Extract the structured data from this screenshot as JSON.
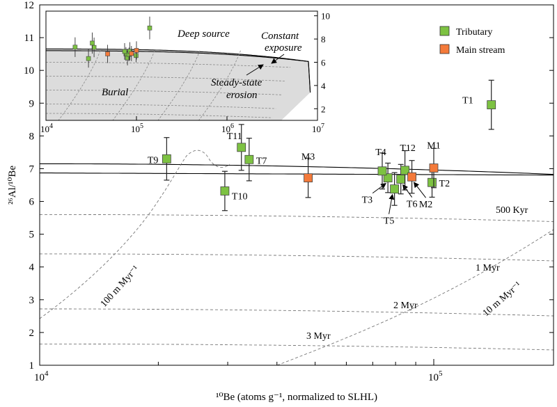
{
  "chart_data": {
    "type": "scatter",
    "xlabel": "¹⁰Be (atoms g⁻¹, normalized to SLHL)",
    "ylabel": "²⁶Al/¹⁰Be",
    "xscale": "log",
    "xlim": [
      10000,
      180000
    ],
    "ylim": [
      1,
      12
    ],
    "x_ticks": [
      {
        "value": 10000,
        "base": "10",
        "exp": "4"
      },
      {
        "value": 100000,
        "base": "10",
        "exp": "5"
      }
    ],
    "y_ticks": [
      "1",
      "2",
      "3",
      "4",
      "5",
      "6",
      "7",
      "8",
      "9",
      "10",
      "11",
      "12"
    ],
    "legend": {
      "position": "top-right",
      "entries": [
        {
          "label": "Tributary",
          "color": "#7dc242"
        },
        {
          "label": "Main stream",
          "color": "#f47a3a"
        }
      ]
    },
    "series": [
      {
        "name": "Tributary",
        "color": "#7dc242",
        "points": [
          {
            "label": "T1",
            "x": 140000,
            "y": 8.95,
            "err": 0.75
          },
          {
            "label": "T2",
            "x": 99000,
            "y": 6.58,
            "err": 0.45
          },
          {
            "label": "T3",
            "x": 76500,
            "y": 6.72,
            "err": 0.45
          },
          {
            "label": "T4",
            "x": 74000,
            "y": 6.93,
            "err": 0.55
          },
          {
            "label": "T5",
            "x": 79500,
            "y": 6.38,
            "err": 0.5
          },
          {
            "label": "T6",
            "x": 82500,
            "y": 6.68,
            "err": 0.45
          },
          {
            "label": "T7",
            "x": 34000,
            "y": 7.28,
            "err": 0.65
          },
          {
            "label": "T9",
            "x": 21000,
            "y": 7.3,
            "err": 0.65
          },
          {
            "label": "T10",
            "x": 29500,
            "y": 6.32,
            "err": 0.6
          },
          {
            "label": "T11",
            "x": 32500,
            "y": 7.65,
            "err": 0.7
          },
          {
            "label": "T12",
            "x": 84500,
            "y": 6.95,
            "err": 0.6
          }
        ]
      },
      {
        "name": "Main stream",
        "color": "#f47a3a",
        "points": [
          {
            "label": "M1",
            "x": 100000,
            "y": 7.02,
            "err": 0.6
          },
          {
            "label": "M2",
            "x": 88000,
            "y": 6.75,
            "err": 0.5
          },
          {
            "label": "M3",
            "x": 48000,
            "y": 6.72,
            "err": 0.6
          }
        ]
      }
    ],
    "annotations": {
      "burial_isochrons": [
        "500 Kyr",
        "1 Myr",
        "2 Myr",
        "3 Myr"
      ],
      "erosion_rate_lines": [
        "100 m Myr⁻¹",
        "10 m Myr⁻¹"
      ]
    },
    "inset": {
      "xscale": "log",
      "x_ticks": [
        {
          "value": 10000,
          "base": "10",
          "exp": "4"
        },
        {
          "value": 100000,
          "base": "10",
          "exp": "5"
        },
        {
          "value": 1000000,
          "base": "10",
          "exp": "6"
        },
        {
          "value": 10000000,
          "base": "10",
          "exp": "7"
        }
      ],
      "y_ticks": [
        "2",
        "4",
        "6",
        "8",
        "10"
      ],
      "labels": {
        "deep_source": "Deep source",
        "constant_exposure_line1": "Constant",
        "constant_exposure_line2": "exposure",
        "steady_state_line1": "Steady-state",
        "steady_state_line2": "erosion",
        "burial": "Burial"
      }
    }
  }
}
